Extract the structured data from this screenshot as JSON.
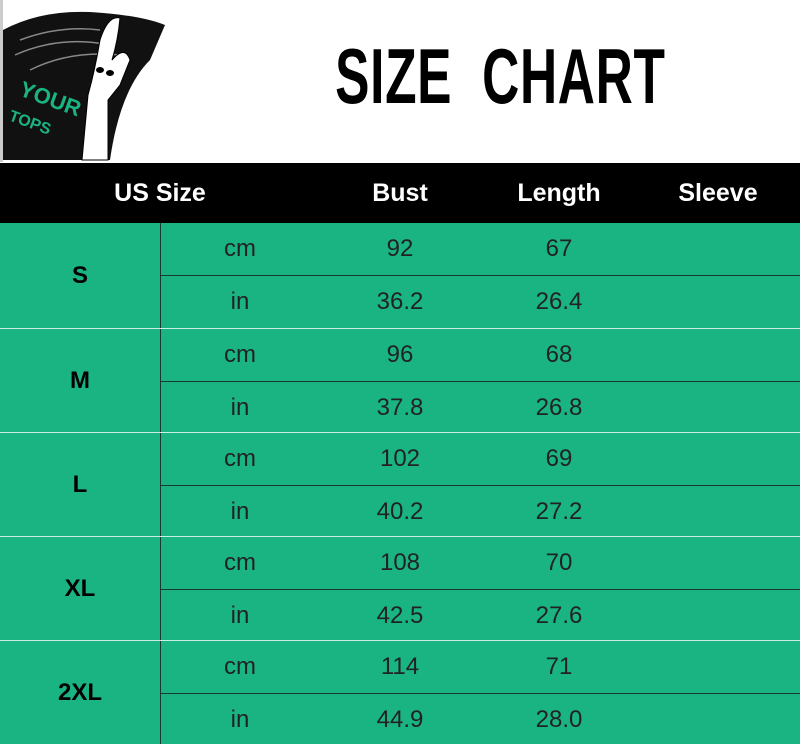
{
  "logo": {
    "text_line1": "YOUR",
    "text_line2": "TOPS",
    "accent": "#1ab482"
  },
  "title": "SIZE  CHART",
  "colors": {
    "header_bg": "#000000",
    "row_bg": "#1ab482"
  },
  "headers": {
    "size": "US Size",
    "bust": "Bust",
    "length": "Length",
    "sleeve": "Sleeve"
  },
  "sizes": [
    {
      "label": "S",
      "rows": [
        {
          "unit": "cm",
          "bust": "92",
          "length": "67",
          "sleeve": ""
        },
        {
          "unit": "in",
          "bust": "36.2",
          "length": "26.4",
          "sleeve": ""
        }
      ]
    },
    {
      "label": "M",
      "rows": [
        {
          "unit": "cm",
          "bust": "96",
          "length": "68",
          "sleeve": ""
        },
        {
          "unit": "in",
          "bust": "37.8",
          "length": "26.8",
          "sleeve": ""
        }
      ]
    },
    {
      "label": "L",
      "rows": [
        {
          "unit": "cm",
          "bust": "102",
          "length": "69",
          "sleeve": ""
        },
        {
          "unit": "in",
          "bust": "40.2",
          "length": "27.2",
          "sleeve": ""
        }
      ]
    },
    {
      "label": "XL",
      "rows": [
        {
          "unit": "cm",
          "bust": "108",
          "length": "70",
          "sleeve": ""
        },
        {
          "unit": "in",
          "bust": "42.5",
          "length": "27.6",
          "sleeve": ""
        }
      ]
    },
    {
      "label": "2XL",
      "rows": [
        {
          "unit": "cm",
          "bust": "114",
          "length": "71",
          "sleeve": ""
        },
        {
          "unit": "in",
          "bust": "44.9",
          "length": "28.0",
          "sleeve": ""
        }
      ]
    }
  ]
}
